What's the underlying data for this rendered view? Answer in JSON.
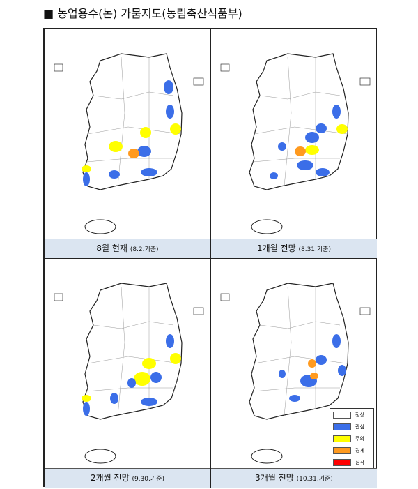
{
  "header": {
    "title": "■ 농업용수(논) 가뭄지도(농림축산식품부)"
  },
  "panels": [
    {
      "title": "8월 현재",
      "date": "(8.2.기준)"
    },
    {
      "title": "1개월 전망",
      "date": "(8.31.기준)"
    },
    {
      "title": "2개월 전망",
      "date": "(9.30.기준)"
    },
    {
      "title": "3개월 전망",
      "date": "(10.31.기준)"
    }
  ],
  "legend": [
    {
      "label": "정상",
      "color": "#ffffff"
    },
    {
      "label": "관심",
      "color": "#3b6ee8"
    },
    {
      "label": "주의",
      "color": "#ffff00"
    },
    {
      "label": "경계",
      "color": "#ff9a1f"
    },
    {
      "label": "심각",
      "color": "#ff0000"
    }
  ]
}
